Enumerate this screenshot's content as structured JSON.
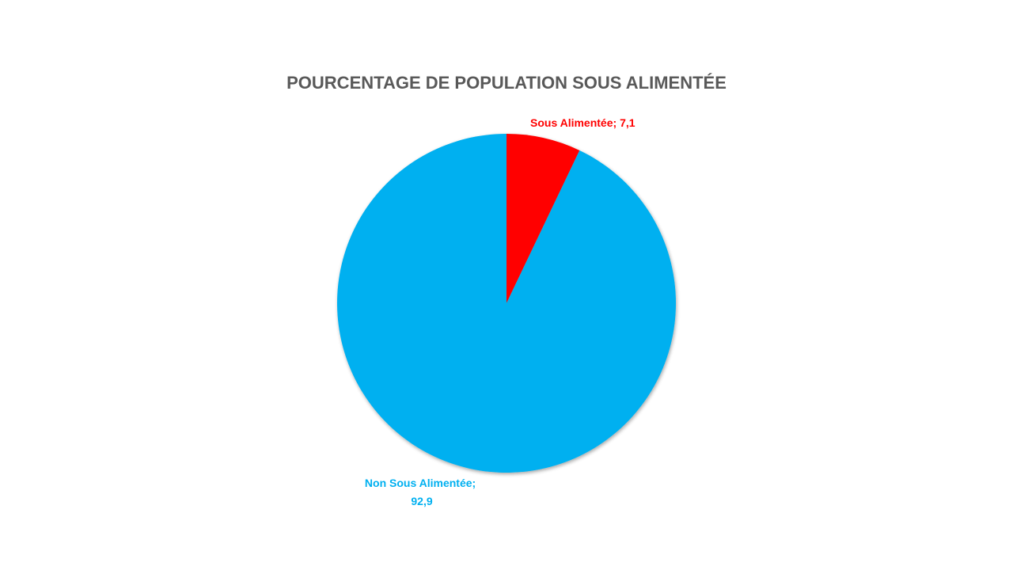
{
  "chart_data": {
    "type": "pie",
    "title": "POURCENTAGE DE POPULATION SOUS ALIMENTÉE",
    "slices": [
      {
        "label": "Sous Alimentée",
        "value": 7.1,
        "value_text": "7,1",
        "color": "#ff0000"
      },
      {
        "label": "Non Sous Alimentée",
        "value": 92.9,
        "value_text": "92,9",
        "color": "#00b0f0"
      }
    ],
    "legend": "none"
  }
}
